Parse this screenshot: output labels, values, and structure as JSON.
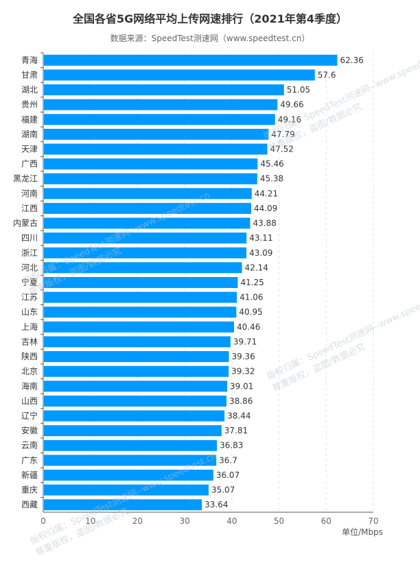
{
  "chart_data": {
    "type": "bar",
    "orientation": "horizontal",
    "title": "全国各省5G网络平均上传网速排行（2021年第4季度）",
    "subtitle": "数据来源：SpeedTest测速网（www.speedtest.cn）",
    "xlabel": "单位/Mbps",
    "xlim": [
      0,
      70
    ],
    "xticks": [
      "0",
      "10",
      "20",
      "30",
      "40",
      "50",
      "60",
      "70"
    ],
    "grid": true,
    "bar_color": "#0099ff",
    "categories": [
      "青海",
      "甘肃",
      "湖北",
      "贵州",
      "福建",
      "湖南",
      "天津",
      "广西",
      "黑龙江",
      "河南",
      "江西",
      "内蒙古",
      "四川",
      "浙江",
      "河北",
      "宁夏",
      "江苏",
      "山东",
      "上海",
      "吉林",
      "陕西",
      "北京",
      "海南",
      "山西",
      "辽宁",
      "安徽",
      "云南",
      "广东",
      "新疆",
      "重庆",
      "西藏"
    ],
    "values": [
      62.36,
      57.6,
      51.05,
      49.66,
      49.16,
      47.79,
      47.52,
      45.46,
      45.38,
      44.21,
      44.09,
      43.88,
      43.11,
      43.09,
      42.14,
      41.25,
      41.06,
      40.95,
      40.46,
      39.71,
      39.36,
      39.32,
      39.01,
      38.86,
      38.44,
      37.81,
      36.83,
      36.7,
      36.07,
      35.07,
      33.64
    ],
    "value_labels": [
      "62.36",
      "57.6",
      "51.05",
      "49.66",
      "49.16",
      "47.79",
      "47.52",
      "45.46",
      "45.38",
      "44.21",
      "44.09",
      "43.88",
      "43.11",
      "43.09",
      "42.14",
      "41.25",
      "41.06",
      "40.95",
      "40.46",
      "39.71",
      "39.36",
      "39.32",
      "39.01",
      "38.86",
      "38.44",
      "37.81",
      "36.83",
      "36.7",
      "36.07",
      "35.07",
      "33.64"
    ]
  },
  "watermark": {
    "line1": "版权归属：SpeedTest测速网--www.speedtest.cn",
    "line2": "尊重版权，盗图/数据必究"
  }
}
